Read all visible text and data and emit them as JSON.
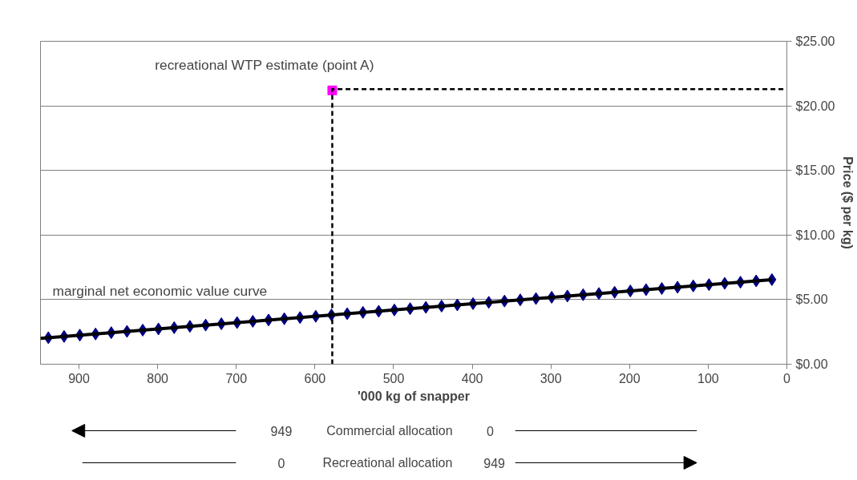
{
  "chart_data": {
    "type": "scatter",
    "xlabel": "'000 kg of snapper",
    "ylabel": "Price ($ per kg)",
    "xlim": [
      949,
      0
    ],
    "xticks": [
      900,
      800,
      700,
      600,
      500,
      400,
      300,
      200,
      100,
      0
    ],
    "ylim": [
      0,
      25
    ],
    "yticks": [
      {
        "value": 0,
        "label": "$0.00"
      },
      {
        "value": 5,
        "label": "$5.00"
      },
      {
        "value": 10,
        "label": "$10.00"
      },
      {
        "value": 15,
        "label": "$15.00"
      },
      {
        "value": 20,
        "label": "$20.00"
      },
      {
        "value": 25,
        "label": "$25.00"
      }
    ],
    "grid": "y",
    "series": [
      {
        "color": "#000080",
        "marker": "diamond",
        "x": [
          939,
          919,
          899,
          879,
          859,
          839,
          819,
          799,
          779,
          759,
          739,
          719,
          699,
          679,
          659,
          639,
          619,
          599,
          579,
          559,
          539,
          519,
          499,
          479,
          459,
          439,
          419,
          399,
          379,
          359,
          339,
          319,
          299,
          279,
          259,
          239,
          219,
          199,
          179,
          159,
          139,
          119,
          99,
          79,
          59,
          39,
          19
        ],
        "values": [
          2.05,
          2.15,
          2.25,
          2.34,
          2.44,
          2.54,
          2.64,
          2.73,
          2.83,
          2.93,
          3.03,
          3.13,
          3.22,
          3.32,
          3.42,
          3.52,
          3.61,
          3.71,
          3.81,
          3.91,
          4.01,
          4.1,
          4.2,
          4.3,
          4.4,
          4.5,
          4.59,
          4.69,
          4.79,
          4.89,
          4.98,
          5.08,
          5.18,
          5.28,
          5.38,
          5.47,
          5.57,
          5.67,
          5.77,
          5.86,
          5.96,
          6.06,
          6.16,
          6.26,
          6.35,
          6.45,
          6.55
        ]
      },
      {
        "type": "line",
        "color": "#000000",
        "line_style": "solid",
        "x": [
          949,
          19
        ],
        "values": [
          2.0,
          6.55
        ]
      },
      {
        "type": "scatter",
        "color": "#ff00ff",
        "marker": "square",
        "x": [
          578
        ],
        "values": [
          21.2
        ]
      },
      {
        "type": "line",
        "color": "#000000",
        "line_style": "dashed",
        "x": [
          578,
          578,
          0
        ],
        "values": [
          0,
          21.3,
          21.3
        ]
      }
    ],
    "annotations": [
      {
        "text": "recreational WTP estimate (point A)",
        "x": 578,
        "y": 21.2
      },
      "marginal net economic value curve",
      "949",
      "Commercial allocation",
      "0",
      "0",
      "Recreational allocation",
      "949"
    ]
  }
}
